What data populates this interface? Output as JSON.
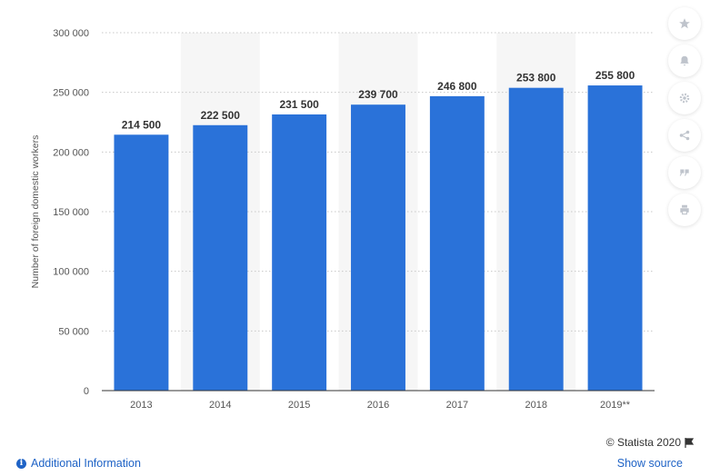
{
  "chart_data": {
    "type": "bar",
    "categories": [
      "2013",
      "2014",
      "2015",
      "2016",
      "2017",
      "2018",
      "2019**"
    ],
    "values": [
      214500,
      222500,
      231500,
      239700,
      246800,
      253800,
      255800
    ],
    "value_labels": [
      "214 500",
      "222 500",
      "231 500",
      "239 700",
      "246 800",
      "253 800",
      "255 800"
    ],
    "ylabel": "Number of foreign domestic workers",
    "ylim": [
      0,
      300000
    ],
    "yticks": [
      0,
      50000,
      100000,
      150000,
      200000,
      250000,
      300000
    ],
    "ytick_labels": [
      "0",
      "50 000",
      "100 000",
      "150 000",
      "200 000",
      "250 000",
      "300 000"
    ],
    "bar_color": "#2a72d9",
    "grid": true
  },
  "credit": "© Statista 2020",
  "footer": {
    "additional_info": "Additional Information",
    "show_source": "Show source"
  },
  "tools": [
    "star-icon",
    "bell-icon",
    "gear-icon",
    "share-icon",
    "quote-icon",
    "print-icon"
  ]
}
